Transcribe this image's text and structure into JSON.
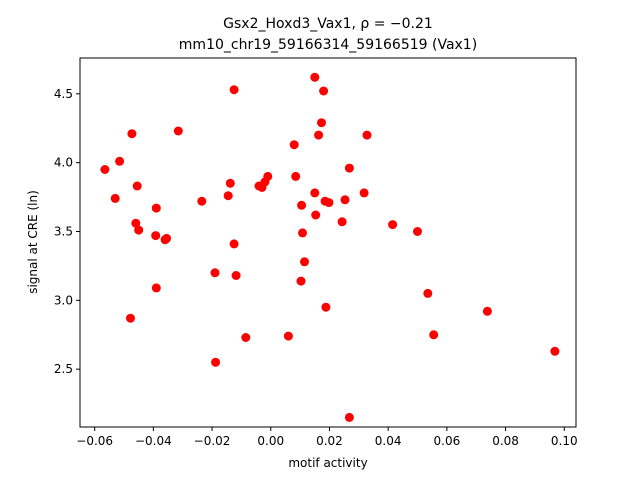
{
  "chart_data": {
    "type": "scatter",
    "title": "Gsx2_Hoxd3_Vax1, ρ = −0.21",
    "subtitle": "mm10_chr19_59166314_59166519 (Vax1)",
    "xlabel": "motif activity",
    "ylabel": "signal at CRE (ln)",
    "xlim": [
      -0.065,
      0.104
    ],
    "ylim": [
      2.08,
      4.76
    ],
    "xticks": [
      -0.06,
      -0.04,
      -0.02,
      0.0,
      0.02,
      0.04,
      0.06,
      0.08,
      0.1
    ],
    "xtick_labels": [
      "−0.06",
      "−0.04",
      "−0.02",
      "0.00",
      "0.02",
      "0.04",
      "0.06",
      "0.08",
      "0.10"
    ],
    "yticks": [
      2.5,
      3.0,
      3.5,
      4.0,
      4.5
    ],
    "ytick_labels": [
      "2.5",
      "3.0",
      "3.5",
      "4.0",
      "4.5"
    ],
    "grid": false,
    "marker_color": "#ff0000",
    "points": [
      [
        -0.0565,
        3.95
      ],
      [
        -0.053,
        3.74
      ],
      [
        -0.0515,
        4.01
      ],
      [
        -0.0478,
        2.87
      ],
      [
        -0.0473,
        4.21
      ],
      [
        -0.046,
        3.56
      ],
      [
        -0.0455,
        3.83
      ],
      [
        -0.045,
        3.51
      ],
      [
        -0.039,
        3.67
      ],
      [
        -0.0392,
        3.47
      ],
      [
        -0.039,
        3.09
      ],
      [
        -0.036,
        3.44
      ],
      [
        -0.0355,
        3.45
      ],
      [
        -0.0315,
        4.23
      ],
      [
        -0.0235,
        3.72
      ],
      [
        -0.019,
        3.2
      ],
      [
        -0.0188,
        2.55
      ],
      [
        -0.0145,
        3.76
      ],
      [
        -0.0138,
        3.85
      ],
      [
        -0.0125,
        4.53
      ],
      [
        -0.0125,
        3.41
      ],
      [
        -0.0118,
        3.18
      ],
      [
        -0.0085,
        2.73
      ],
      [
        -0.004,
        3.83
      ],
      [
        -0.003,
        3.82
      ],
      [
        -0.002,
        3.86
      ],
      [
        -0.001,
        3.9
      ],
      [
        0.006,
        2.74
      ],
      [
        0.008,
        4.13
      ],
      [
        0.0085,
        3.9
      ],
      [
        0.0103,
        3.14
      ],
      [
        0.0105,
        3.69
      ],
      [
        0.0108,
        3.49
      ],
      [
        0.0115,
        3.28
      ],
      [
        0.015,
        4.62
      ],
      [
        0.015,
        3.78
      ],
      [
        0.0153,
        3.62
      ],
      [
        0.0163,
        4.2
      ],
      [
        0.0173,
        4.29
      ],
      [
        0.018,
        4.52
      ],
      [
        0.0185,
        3.72
      ],
      [
        0.0188,
        2.95
      ],
      [
        0.0198,
        3.71
      ],
      [
        0.0243,
        3.57
      ],
      [
        0.0253,
        3.73
      ],
      [
        0.0268,
        3.96
      ],
      [
        0.0268,
        2.15
      ],
      [
        0.0318,
        3.78
      ],
      [
        0.0328,
        4.2
      ],
      [
        0.0415,
        3.55
      ],
      [
        0.05,
        3.5
      ],
      [
        0.0535,
        3.05
      ],
      [
        0.0555,
        2.75
      ],
      [
        0.0738,
        2.92
      ],
      [
        0.0968,
        2.63
      ]
    ]
  }
}
